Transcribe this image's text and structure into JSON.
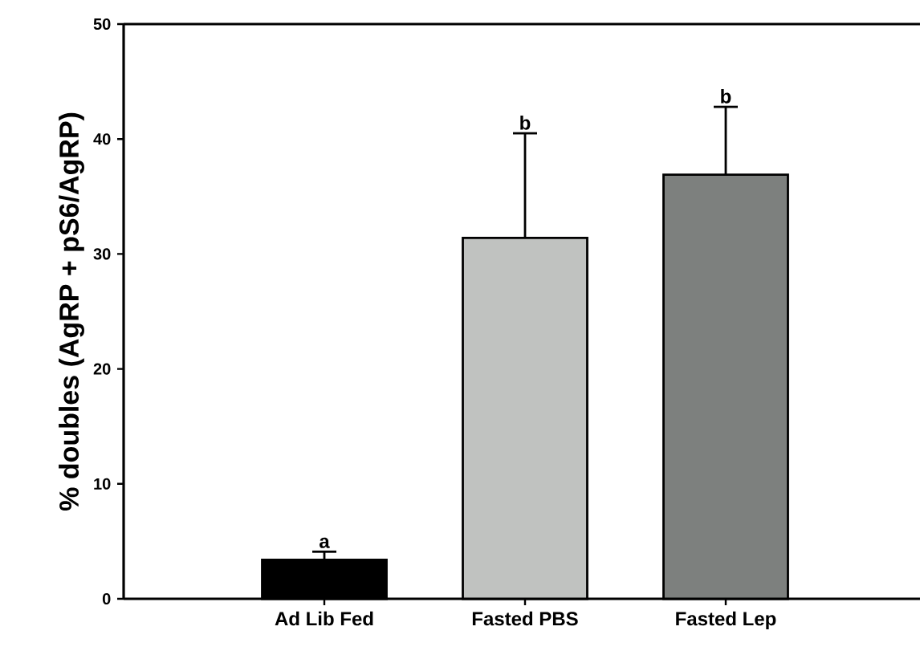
{
  "chart_data": {
    "type": "bar",
    "ylabel": "% doubles (AgRP + pS6/AgRP)",
    "categories": [
      "Ad Lib Fed",
      "Fasted PBS",
      "Fasted Lep"
    ],
    "values": [
      3.4,
      31.4,
      36.9
    ],
    "colors": [
      "#000000",
      "#c0c2c0",
      "#7d807e"
    ],
    "errors": [
      [
        3.4,
        4.1
      ],
      [
        31.4,
        40.5
      ],
      [
        36.9,
        42.8
      ]
    ],
    "ylim": [
      0,
      50
    ],
    "yticks": [
      0,
      10,
      20,
      30,
      40,
      50
    ],
    "annotations": [
      {
        "text": "a",
        "x": "Ad Lib Fed",
        "y": 4.1
      },
      {
        "text": "b",
        "x": "Fasted PBS",
        "y": 40.5
      },
      {
        "text": "b",
        "x": "Fasted Lep",
        "y": 42.8
      }
    ]
  }
}
